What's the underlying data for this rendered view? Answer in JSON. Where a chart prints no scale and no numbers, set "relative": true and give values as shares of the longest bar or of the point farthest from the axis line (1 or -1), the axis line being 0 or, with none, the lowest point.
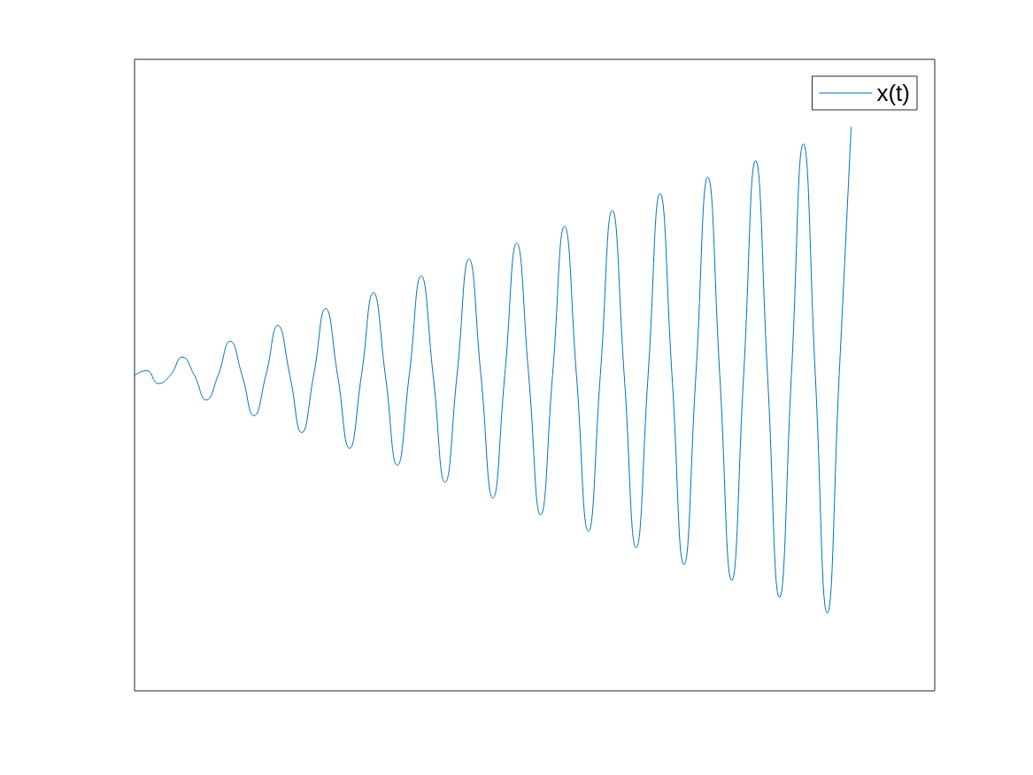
{
  "chart_data": {
    "type": "line",
    "relative": true,
    "grid": false,
    "legend": "top right",
    "marker": "none",
    "line_style": "solid",
    "categories": [
      null,
      null,
      null,
      null,
      null,
      null,
      null,
      null,
      null,
      null,
      null,
      null,
      null,
      null,
      null,
      null,
      null,
      null,
      null,
      null,
      null,
      null,
      null,
      null,
      null,
      null,
      null,
      null,
      null,
      null,
      null,
      null,
      null,
      null,
      null,
      null,
      null,
      null,
      null,
      null,
      null,
      null,
      null,
      null,
      null,
      null,
      null,
      null,
      null,
      null,
      null,
      null,
      null,
      null,
      null,
      null,
      null,
      null,
      null,
      null,
      null,
      null,
      null,
      null,
      null,
      null,
      null,
      null
    ],
    "series": [
      {
        "name": "x(t)",
        "color": "#0072bd",
        "values": [
          0.56,
          0.568,
          0.545,
          0.56,
          0.592,
          0.56,
          0.516,
          0.56,
          0.62,
          0.56,
          0.488,
          0.56,
          0.648,
          0.56,
          0.458,
          0.56,
          0.678,
          0.56,
          0.43,
          0.56,
          0.706,
          0.56,
          0.4,
          0.56,
          0.736,
          0.56,
          0.37,
          0.56,
          0.766,
          0.56,
          0.342,
          0.56,
          0.794,
          0.56,
          0.312,
          0.56,
          0.824,
          0.56,
          0.283,
          0.56,
          0.852,
          0.56,
          0.254,
          0.56,
          0.882,
          0.56,
          0.224,
          0.56,
          0.911,
          0.56,
          0.196,
          0.56,
          0.94,
          0.56,
          0.166,
          0.56,
          0.97,
          0.56,
          0.138,
          0.56,
          1,
          null,
          null,
          null,
          null,
          null,
          null,
          null
        ]
      }
    ]
  }
}
